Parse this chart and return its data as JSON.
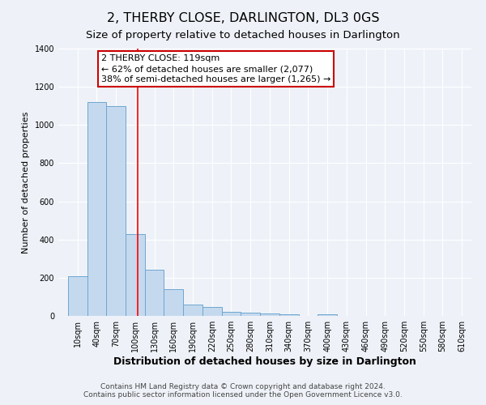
{
  "title": "2, THERBY CLOSE, DARLINGTON, DL3 0GS",
  "subtitle": "Size of property relative to detached houses in Darlington",
  "xlabel": "Distribution of detached houses by size in Darlington",
  "ylabel": "Number of detached properties",
  "bar_values": [
    210,
    1120,
    1100,
    430,
    240,
    140,
    60,
    45,
    22,
    15,
    12,
    10,
    0,
    10,
    0,
    0,
    0,
    0,
    0,
    0,
    0
  ],
  "bar_labels": [
    "10sqm",
    "40sqm",
    "70sqm",
    "100sqm",
    "130sqm",
    "160sqm",
    "190sqm",
    "220sqm",
    "250sqm",
    "280sqm",
    "310sqm",
    "340sqm",
    "370sqm",
    "400sqm",
    "430sqm",
    "460sqm",
    "490sqm",
    "520sqm",
    "550sqm",
    "580sqm",
    "610sqm"
  ],
  "bar_color": "#c5d9ee",
  "bar_edge_color": "#6ea6d0",
  "red_line_x": 119,
  "annotation_text": "2 THERBY CLOSE: 119sqm\n← 62% of detached houses are smaller (2,077)\n38% of semi-detached houses are larger (1,265) →",
  "annotation_box_color": "#ffffff",
  "annotation_box_edge_color": "#cc0000",
  "ylim": [
    0,
    1400
  ],
  "yticks": [
    0,
    200,
    400,
    600,
    800,
    1000,
    1200,
    1400
  ],
  "footer": "Contains HM Land Registry data © Crown copyright and database right 2024.\nContains public sector information licensed under the Open Government Licence v3.0.",
  "bg_color": "#eef2f8",
  "plot_bg_color": "#eef2f8",
  "grid_color": "#ffffff",
  "title_fontsize": 11.5,
  "subtitle_fontsize": 9.5,
  "xlabel_fontsize": 9,
  "ylabel_fontsize": 8,
  "tick_fontsize": 7,
  "annotation_fontsize": 8,
  "footer_fontsize": 6.5
}
